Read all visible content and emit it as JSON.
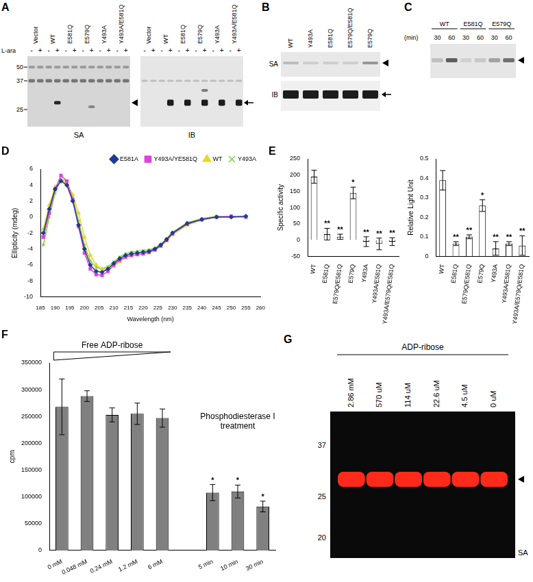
{
  "panels": {
    "A": {
      "label": "A",
      "lanes": [
        "Vector",
        "WT",
        "E581Q",
        "E579Q",
        "Y493A",
        "Y493A/E581Q"
      ],
      "inducer": "L-ara",
      "signs": [
        "-",
        "+"
      ],
      "markers": [
        50,
        37,
        25
      ],
      "blots": [
        "SA",
        "IB"
      ]
    },
    "B": {
      "label": "B",
      "lanes": [
        "WT",
        "Y493A",
        "E581Q",
        "E579Q/E581Q",
        "E579Q"
      ],
      "rows": [
        "SA",
        "IB"
      ]
    },
    "C": {
      "label": "C",
      "unit": "(min)",
      "groups": [
        "WT",
        "E581Q",
        "E579Q"
      ],
      "times": [
        30,
        60
      ]
    },
    "G": {
      "label": "G",
      "header": "ADP-ribose",
      "lanes": [
        "2.86 mM",
        "570 uM",
        "114 uM",
        "22.6 uM",
        "4.5 uM",
        "0 uM"
      ],
      "markers": [
        37,
        25,
        20
      ],
      "blot": "SA"
    }
  },
  "chart_data": [
    {
      "panel": "D",
      "type": "line",
      "x_label": "Wavelength (nm)",
      "y_label": "Ellipticity (mdeg)",
      "x": [
        186,
        188,
        190,
        192,
        194,
        196,
        198,
        200,
        202,
        204,
        206,
        208,
        210,
        212,
        214,
        216,
        218,
        220,
        222,
        224,
        226,
        228,
        230,
        235,
        240,
        245,
        250,
        255
      ],
      "series": [
        {
          "name": "E581A",
          "color": "#1f3a93",
          "marker": "diamond",
          "values": [
            -2,
            1,
            3.5,
            4.5,
            4,
            2,
            -1,
            -4,
            -6,
            -6.8,
            -6.9,
            -6.5,
            -5.8,
            -5.2,
            -4.8,
            -4.6,
            -4.5,
            -4.4,
            -4.3,
            -4.0,
            -3.5,
            -2.8,
            -2.0,
            -0.8,
            -0.3,
            0,
            0,
            0.1
          ]
        },
        {
          "name": "Y493A/YE581Q",
          "color": "#e040e0",
          "marker": "square",
          "values": [
            -2.5,
            0.5,
            3.5,
            5.2,
            4.5,
            2.2,
            -1.2,
            -4.5,
            -6.5,
            -7.2,
            -7.3,
            -6.8,
            -6.0,
            -5.4,
            -5.0,
            -4.8,
            -4.7,
            -4.6,
            -4.4,
            -4.1,
            -3.6,
            -2.9,
            -2.1,
            -0.9,
            -0.3,
            0,
            0.1,
            0
          ]
        },
        {
          "name": "WT",
          "color": "#e8d820",
          "marker": "triangle",
          "values": [
            -1.5,
            1.5,
            3.8,
            4.5,
            4.2,
            2.8,
            0.5,
            -2.5,
            -4.8,
            -6,
            -6.5,
            -6.6,
            -6.2,
            -5.6,
            -5.1,
            -4.8,
            -4.7,
            -4.6,
            -4.5,
            -4.2,
            -3.7,
            -3.0,
            -2.2,
            -1.0,
            -0.4,
            0,
            0,
            0
          ]
        },
        {
          "name": "Y493A",
          "color": "#7fd13b",
          "marker": "x",
          "values": [
            -3.5,
            0,
            3,
            4.8,
            4.4,
            2.5,
            -0.5,
            -3.5,
            -5.5,
            -6.3,
            -6.5,
            -6.2,
            -5.6,
            -5.0,
            -4.6,
            -4.4,
            -4.3,
            -4.2,
            -4.1,
            -3.9,
            -3.4,
            -2.7,
            -1.9,
            -0.7,
            -0.2,
            0.1,
            0,
            0
          ]
        }
      ],
      "xlim": [
        185,
        260
      ],
      "xticks": [
        185,
        190,
        195,
        200,
        205,
        210,
        215,
        220,
        225,
        230,
        235,
        240,
        245,
        250,
        255,
        260
      ],
      "ylim": [
        -10,
        6
      ],
      "yticks": [
        -10,
        -8,
        -6,
        -4,
        -2,
        0,
        2,
        4,
        6
      ],
      "grid": false,
      "legend": "top"
    },
    {
      "panel": "E",
      "type": "bar",
      "y_label": "Specific activity",
      "categories": [
        "WT",
        "E581Q",
        "E579Q/E581Q",
        "E579Q",
        "Y493A",
        "Y493A/E581Q",
        "Y493A/E579Q/E581Q"
      ],
      "values": [
        195,
        18,
        10,
        145,
        -5,
        -12,
        -5
      ],
      "errors": [
        20,
        18,
        8,
        18,
        15,
        18,
        12
      ],
      "significance": [
        null,
        "**",
        "**",
        "*",
        "**",
        "**",
        "**"
      ],
      "color": "#ffffff",
      "ylim": [
        -50,
        250
      ],
      "yticks": [
        -50,
        0,
        50,
        100,
        150,
        200,
        250
      ],
      "grid": false
    },
    {
      "type": "bar",
      "y_label": "Relative Light Unit",
      "categories": [
        "WT",
        "E581Q",
        "E579Q/E581Q",
        "E579Q",
        "Y493A",
        "Y493A/E581Q",
        "Y493A/E579Q/E581Q"
      ],
      "values": [
        0.39,
        0.065,
        0.1,
        0.26,
        0.04,
        0.065,
        0.055
      ],
      "errors": [
        0.05,
        0.01,
        0.01,
        0.03,
        0.035,
        0.01,
        0.05
      ],
      "significance": [
        null,
        "**",
        "**",
        "*",
        "**",
        "**",
        "**"
      ],
      "color": "#ffffff",
      "ylim": [
        0,
        0.5
      ],
      "yticks": [
        0,
        0.1,
        0.2,
        0.3,
        0.4,
        0.5
      ],
      "grid": false
    },
    {
      "panel": "F",
      "type": "bar",
      "y_label": "cpm",
      "categories": [
        "0 mM",
        "0.048 mM",
        "0.24 mM",
        "1.2 mM",
        "6 mM",
        null,
        "5 min",
        "10 min",
        "30 min"
      ],
      "values": [
        268000,
        288000,
        253000,
        255000,
        247000,
        null,
        108000,
        110000,
        82000
      ],
      "errors": [
        52000,
        10000,
        13000,
        20000,
        17000,
        null,
        15000,
        12000,
        10000
      ],
      "significance": [
        null,
        null,
        null,
        null,
        null,
        null,
        "*",
        "*",
        "*"
      ],
      "annotations": [
        "Free ADP-ribose",
        "Phosphodiesterase I treatment"
      ],
      "color": "#808080",
      "ylim": [
        0,
        350000
      ],
      "yticks": [
        0,
        50000,
        100000,
        150000,
        200000,
        250000,
        300000,
        350000
      ],
      "grid": false
    }
  ]
}
